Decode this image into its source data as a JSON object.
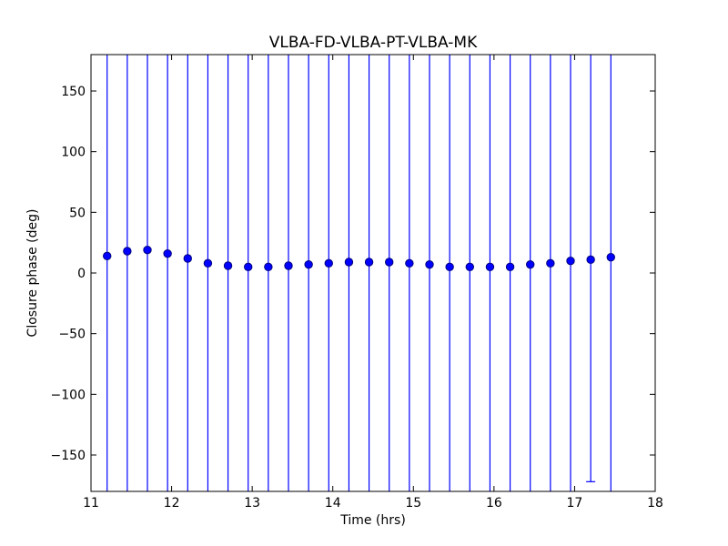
{
  "chart_data": {
    "type": "scatter",
    "title": "VLBA-FD-VLBA-PT-VLBA-MK",
    "xlabel": "Time (hrs)",
    "ylabel": "Closure phase (deg)",
    "xlim": [
      11,
      18
    ],
    "ylim": [
      -180,
      180
    ],
    "xticks": [
      11,
      12,
      13,
      14,
      15,
      16,
      17,
      18
    ],
    "yticks": [
      150,
      100,
      50,
      0,
      -50,
      -100,
      -150
    ],
    "xtick_labels": [
      "11",
      "12",
      "13",
      "14",
      "15",
      "16",
      "17",
      "18"
    ],
    "ytick_labels": [
      "150",
      "100",
      "50",
      "0",
      "−50",
      "−100",
      "−150"
    ],
    "grid": false,
    "colors": {
      "series": "#0000ff",
      "marker_edge": "#00007a",
      "axes": "#000000"
    },
    "series": [
      {
        "x": [
          11.2,
          11.45,
          11.7,
          11.95,
          12.2,
          12.45,
          12.7,
          12.95,
          13.2,
          13.45,
          13.7,
          13.95,
          14.2,
          14.45,
          14.7,
          14.95,
          15.2,
          15.45,
          15.7,
          15.95,
          16.2,
          16.45,
          16.7,
          16.95,
          17.2,
          17.45
        ],
        "y": [
          14,
          18,
          19,
          16,
          12,
          8,
          6,
          5,
          5,
          6,
          7,
          8,
          9,
          9,
          9,
          8,
          7,
          5,
          5,
          5,
          5,
          7,
          8,
          10,
          11,
          13
        ],
        "yerr_low": [
          -180,
          -180,
          -180,
          -180,
          -180,
          -180,
          -180,
          -180,
          -180,
          -180,
          -180,
          -180,
          -180,
          -180,
          -180,
          -180,
          -180,
          -180,
          -180,
          -180,
          -180,
          -180,
          -180,
          -180,
          -172,
          -180
        ],
        "yerr_high": [
          180,
          180,
          180,
          180,
          180,
          180,
          180,
          180,
          180,
          180,
          180,
          180,
          180,
          180,
          180,
          180,
          180,
          180,
          180,
          180,
          180,
          180,
          180,
          180,
          180,
          180
        ]
      }
    ]
  }
}
